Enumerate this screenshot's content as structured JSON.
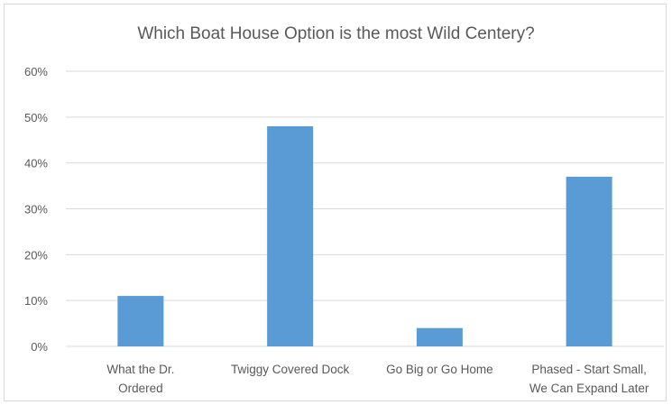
{
  "chart_data": {
    "type": "bar",
    "title": "Which Boat House Option is the most Wild Centery?",
    "categories": [
      [
        "What the Dr.",
        "Ordered"
      ],
      [
        "Twiggy Covered Dock"
      ],
      [
        "Go Big or Go Home"
      ],
      [
        "Phased - Start Small,",
        "We Can Expand Later"
      ]
    ],
    "values": [
      0.11,
      0.48,
      0.04,
      0.37
    ],
    "ylim": [
      0,
      0.6
    ],
    "yticks": [
      0,
      0.1,
      0.2,
      0.3,
      0.4,
      0.5,
      0.6
    ],
    "ytick_labels": [
      "0%",
      "10%",
      "20%",
      "30%",
      "40%",
      "50%",
      "60%"
    ],
    "grid": true,
    "legend": "none",
    "colors": {
      "bar": "#5b9bd5",
      "grid": "#d9d9d9",
      "text": "#595959"
    }
  }
}
